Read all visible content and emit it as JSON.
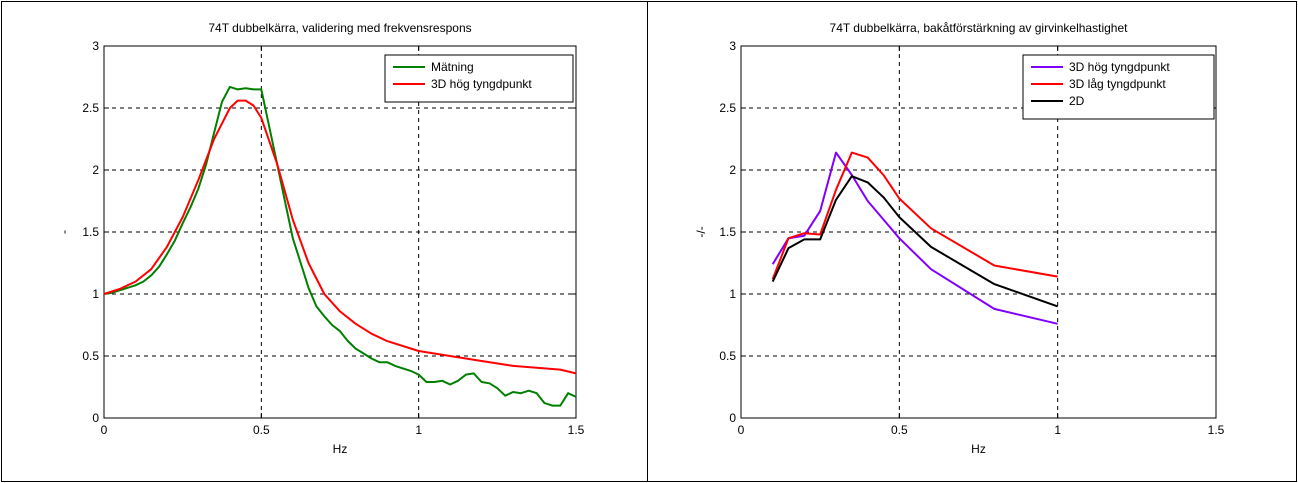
{
  "chart_data": [
    {
      "type": "line",
      "title": "74T dubbelkärra, validering med frekvensrespons",
      "xlabel": "Hz",
      "ylabel": "-",
      "xlim": [
        0,
        1.5
      ],
      "ylim": [
        0,
        3
      ],
      "xticks": [
        0,
        0.5,
        1,
        1.5
      ],
      "xtick_labels": [
        "0",
        "0.5",
        "1",
        "1.5"
      ],
      "yticks": [
        0,
        0.5,
        1,
        1.5,
        2,
        2.5,
        3
      ],
      "ytick_labels": [
        "0",
        "0.5",
        "1",
        "1.5",
        "2",
        "2.5",
        "3"
      ],
      "grid": true,
      "legend_position": "top-right",
      "series": [
        {
          "name": "Mätning",
          "color": "#008000",
          "x": [
            0,
            0.025,
            0.05,
            0.075,
            0.1,
            0.125,
            0.15,
            0.175,
            0.2,
            0.225,
            0.25,
            0.275,
            0.3,
            0.325,
            0.35,
            0.375,
            0.4,
            0.425,
            0.45,
            0.475,
            0.5,
            0.525,
            0.55,
            0.575,
            0.6,
            0.625,
            0.65,
            0.675,
            0.7,
            0.725,
            0.75,
            0.775,
            0.8,
            0.825,
            0.85,
            0.875,
            0.9,
            0.925,
            0.95,
            0.975,
            1.0,
            1.025,
            1.05,
            1.075,
            1.1,
            1.125,
            1.15,
            1.175,
            1.2,
            1.225,
            1.25,
            1.275,
            1.3,
            1.325,
            1.35,
            1.375,
            1.4,
            1.425,
            1.45,
            1.475,
            1.5
          ],
          "y": [
            1.0,
            1.01,
            1.03,
            1.05,
            1.07,
            1.1,
            1.15,
            1.22,
            1.32,
            1.43,
            1.57,
            1.7,
            1.85,
            2.05,
            2.3,
            2.55,
            2.67,
            2.65,
            2.66,
            2.65,
            2.65,
            2.35,
            2.05,
            1.75,
            1.45,
            1.25,
            1.05,
            0.9,
            0.82,
            0.75,
            0.7,
            0.62,
            0.56,
            0.52,
            0.48,
            0.45,
            0.45,
            0.42,
            0.4,
            0.38,
            0.35,
            0.29,
            0.29,
            0.3,
            0.27,
            0.3,
            0.35,
            0.36,
            0.29,
            0.28,
            0.24,
            0.18,
            0.21,
            0.2,
            0.22,
            0.2,
            0.12,
            0.1,
            0.1,
            0.2,
            0.17
          ]
        },
        {
          "name": "3D hög tyngdpunkt",
          "color": "#ff0000",
          "x": [
            0,
            0.05,
            0.1,
            0.15,
            0.2,
            0.25,
            0.3,
            0.35,
            0.4,
            0.425,
            0.45,
            0.475,
            0.5,
            0.55,
            0.6,
            0.65,
            0.7,
            0.75,
            0.8,
            0.85,
            0.9,
            1.0,
            1.1,
            1.2,
            1.3,
            1.4,
            1.45,
            1.5
          ],
          "y": [
            1.0,
            1.04,
            1.1,
            1.2,
            1.38,
            1.62,
            1.92,
            2.25,
            2.5,
            2.56,
            2.56,
            2.52,
            2.42,
            2.05,
            1.6,
            1.25,
            1.0,
            0.86,
            0.76,
            0.68,
            0.62,
            0.54,
            0.5,
            0.46,
            0.42,
            0.4,
            0.39,
            0.36
          ]
        }
      ]
    },
    {
      "type": "line",
      "title": "74T dubbelkärra, bakåtförstärkning av girvinkelhastighet",
      "xlabel": "Hz",
      "ylabel": "-/-",
      "xlim": [
        0,
        1.5
      ],
      "ylim": [
        0,
        3
      ],
      "xticks": [
        0,
        0.5,
        1,
        1.5
      ],
      "xtick_labels": [
        "0",
        "0.5",
        "1",
        "1.5"
      ],
      "yticks": [
        0,
        0.5,
        1,
        1.5,
        2,
        2.5,
        3
      ],
      "ytick_labels": [
        "0",
        "0.5",
        "1",
        "1.5",
        "2",
        "2.5",
        "3"
      ],
      "grid": true,
      "legend_position": "top-right",
      "series": [
        {
          "name": "3D hög tyngdpunkt",
          "color": "#8000ff",
          "x": [
            0.1,
            0.15,
            0.2,
            0.25,
            0.3,
            0.35,
            0.4,
            0.5,
            0.6,
            0.8,
            1.0
          ],
          "y": [
            1.24,
            1.45,
            1.47,
            1.67,
            2.14,
            1.96,
            1.75,
            1.45,
            1.2,
            0.88,
            0.76
          ]
        },
        {
          "name": "3D låg tyngdpunkt",
          "color": "#ff0000",
          "x": [
            0.1,
            0.15,
            0.2,
            0.25,
            0.3,
            0.35,
            0.4,
            0.45,
            0.5,
            0.6,
            0.8,
            1.0
          ],
          "y": [
            1.12,
            1.45,
            1.49,
            1.48,
            1.84,
            2.14,
            2.1,
            1.96,
            1.77,
            1.53,
            1.23,
            1.14
          ]
        },
        {
          "name": "2D",
          "color": "#000000",
          "x": [
            0.1,
            0.15,
            0.2,
            0.25,
            0.3,
            0.35,
            0.4,
            0.45,
            0.5,
            0.6,
            0.8,
            1.0
          ],
          "y": [
            1.1,
            1.37,
            1.44,
            1.44,
            1.76,
            1.95,
            1.9,
            1.78,
            1.62,
            1.38,
            1.08,
            0.9
          ]
        }
      ]
    }
  ]
}
